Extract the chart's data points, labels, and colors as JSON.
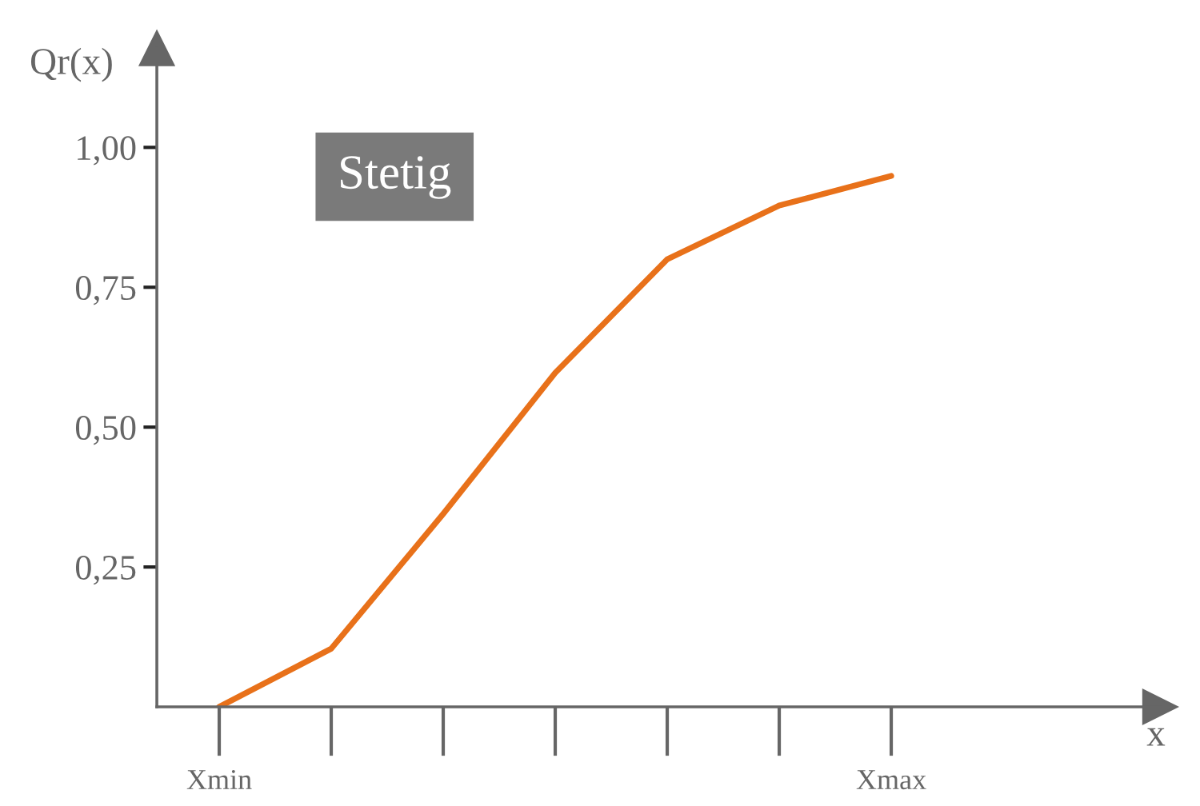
{
  "chart_data": {
    "type": "line",
    "ylabel": "Qr(x)",
    "annotations": [
      "Stetig",
      "x"
    ],
    "categories": [
      "Xmin",
      null,
      null,
      null,
      null,
      null,
      "Xmax"
    ],
    "series": [
      {
        "color": "#e8711a",
        "values": [
          0,
          0.104,
          0.345,
          0.597,
          0.8,
          0.896,
          0.949
        ]
      }
    ],
    "ylim": [
      0,
      1.177
    ],
    "yticks": [
      {
        "value": 0.25,
        "label": "0,25"
      },
      {
        "value": 0.5,
        "label": "0,50"
      },
      {
        "value": 0.75,
        "label": "0,75"
      },
      {
        "value": 1.0,
        "label": "1,00"
      }
    ],
    "grid": false,
    "legend": false,
    "marker": "none",
    "line_style": "solid"
  }
}
